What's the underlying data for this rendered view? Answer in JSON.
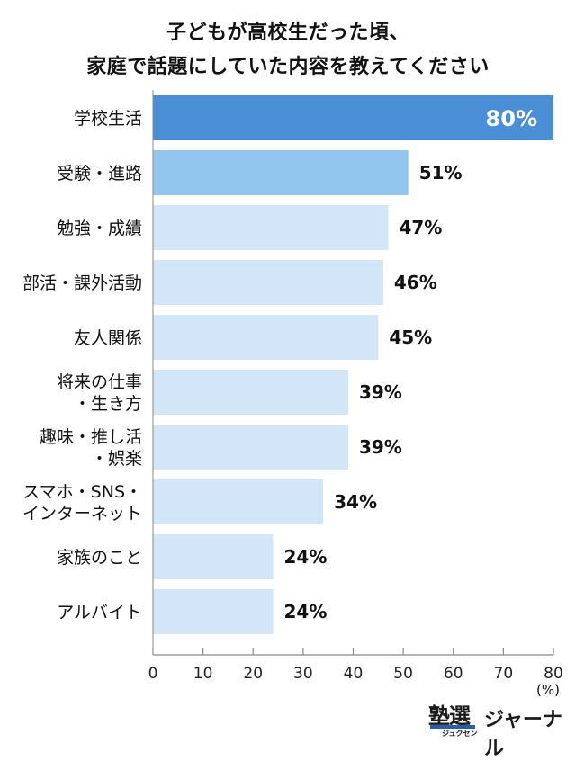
{
  "chart_data": {
    "type": "bar",
    "orientation": "horizontal",
    "title": [
      "子どもが高校生だった頃、",
      "家庭で話題にしていた内容を教えてください"
    ],
    "categories": [
      [
        "学校生活"
      ],
      [
        "受験・進路"
      ],
      [
        "勉強・成績"
      ],
      [
        "部活・課外活動"
      ],
      [
        "友人関係"
      ],
      [
        "将来の仕事",
        "・生き方"
      ],
      [
        "趣味・推し活",
        "・娯楽"
      ],
      [
        "スマホ・SNS・",
        "インターネット"
      ],
      [
        "家族のこと"
      ],
      [
        "アルバイト"
      ]
    ],
    "values": [
      80,
      51,
      47,
      46,
      45,
      39,
      39,
      34,
      24,
      24
    ],
    "value_labels": [
      "80%",
      "51%",
      "47%",
      "46%",
      "45%",
      "39%",
      "39%",
      "34%",
      "24%",
      "24%"
    ],
    "xlim": [
      0,
      80
    ],
    "xticks": [
      0,
      10,
      20,
      30,
      40,
      50,
      60,
      70,
      80
    ],
    "unit": "(%)",
    "grid": false,
    "colors": {
      "top": "#4a8fd6",
      "second": "#93c6ee",
      "rest": "#d2e6f7"
    }
  },
  "brand": {
    "main": "塾選",
    "sub": "ジュクセン",
    "journal": "ジャーナル"
  }
}
